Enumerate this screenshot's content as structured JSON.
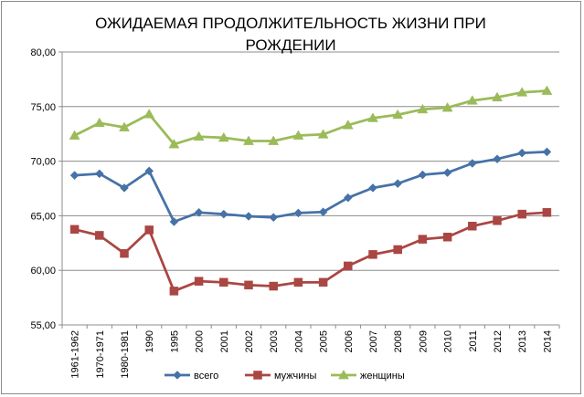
{
  "chart_data": {
    "type": "line",
    "title": "ОЖИДАЕМАЯ ПРОДОЛЖИТЕЛЬНОСТЬ ЖИЗНИ ПРИ РОЖДЕНИИ",
    "title_lines": [
      "ОЖИДАЕМАЯ ПРОДОЛЖИТЕЛЬНОСТЬ ЖИЗНИ ПРИ",
      "РОЖДЕНИИ"
    ],
    "xlabel": "",
    "ylabel": "",
    "ylim": [
      55,
      80
    ],
    "y_ticks": [
      "55,00",
      "60,00",
      "65,00",
      "70,00",
      "75,00",
      "80,00"
    ],
    "y_tick_values": [
      55,
      60,
      65,
      70,
      75,
      80
    ],
    "grid": true,
    "legend_position": "bottom",
    "categories": [
      "1961-1962",
      "1970-1971",
      "1980-1981",
      "1990",
      "1995",
      "2000",
      "2001",
      "2002",
      "2003",
      "2004",
      "2005",
      "2006",
      "2007",
      "2008",
      "2009",
      "2010",
      "2011",
      "2012",
      "2013",
      "2014"
    ],
    "series": [
      {
        "name": "всего",
        "color": "#4572a7",
        "marker": "diamond",
        "values": [
          68.7,
          68.85,
          67.55,
          69.1,
          64.45,
          65.3,
          65.15,
          64.95,
          64.85,
          65.25,
          65.35,
          66.65,
          67.55,
          67.95,
          68.75,
          68.95,
          69.8,
          70.2,
          70.75,
          70.85
        ]
      },
      {
        "name": "мужчины",
        "color": "#aa4643",
        "marker": "square",
        "values": [
          63.75,
          63.2,
          61.55,
          63.7,
          58.1,
          59.0,
          58.9,
          58.65,
          58.55,
          58.9,
          58.9,
          60.4,
          61.45,
          61.9,
          62.85,
          63.05,
          64.05,
          64.55,
          65.15,
          65.3
        ]
      },
      {
        "name": "женщины",
        "color": "#9bbb59",
        "marker": "triangle",
        "values": [
          72.35,
          73.5,
          73.1,
          74.3,
          71.55,
          72.25,
          72.15,
          71.85,
          71.85,
          72.35,
          72.45,
          73.3,
          73.95,
          74.25,
          74.75,
          74.9,
          75.55,
          75.85,
          76.3,
          76.45
        ]
      }
    ]
  }
}
